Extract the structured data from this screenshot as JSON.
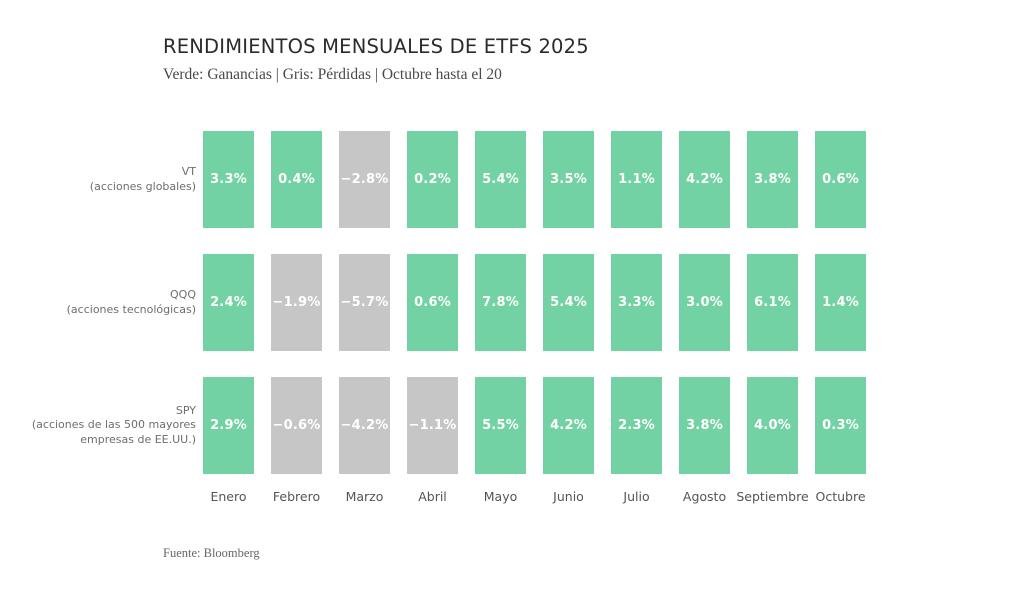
{
  "title": "RENDIMIENTOS MENSUALES DE ETFS 2025",
  "subtitle": "Verde: Ganancias | Gris: Pérdidas | Octubre hasta el 20",
  "source": "Fuente: Bloomberg",
  "colors": {
    "gain": "#73d2a3",
    "loss": "#c6c6c6",
    "cell_text": "#ffffff"
  },
  "chart_data": {
    "type": "heatmap",
    "title": "RENDIMIENTOS MENSUALES DE ETFS 2025",
    "subtitle": "Verde: Ganancias | Gris: Pérdidas | Octubre hasta el 20",
    "source": "Fuente: Bloomberg",
    "value_unit": "percent",
    "value_format": "one_decimal_with_percent_sign",
    "legend": {
      "green": "Ganancias",
      "gray": "Pérdidas",
      "note": "Octubre hasta el 20"
    },
    "categories": [
      "Enero",
      "Febrero",
      "Marzo",
      "Abril",
      "Mayo",
      "Junio",
      "Julio",
      "Agosto",
      "Septiembre",
      "Octubre"
    ],
    "series": [
      {
        "name": "VT",
        "description": "(acciones globales)",
        "values": [
          3.3,
          0.4,
          -2.8,
          0.2,
          5.4,
          3.5,
          1.1,
          4.2,
          3.8,
          0.6
        ]
      },
      {
        "name": "QQQ",
        "description": "(acciones tecnológicas)",
        "values": [
          2.4,
          -1.9,
          -5.7,
          0.6,
          7.8,
          5.4,
          3.3,
          3.0,
          6.1,
          1.4
        ]
      },
      {
        "name": "SPY",
        "description": "(acciones de las 500 mayores empresas de EE.UU.)",
        "values": [
          2.9,
          -0.6,
          -4.2,
          -1.1,
          5.5,
          4.2,
          2.3,
          3.8,
          4.0,
          0.3
        ]
      }
    ]
  }
}
